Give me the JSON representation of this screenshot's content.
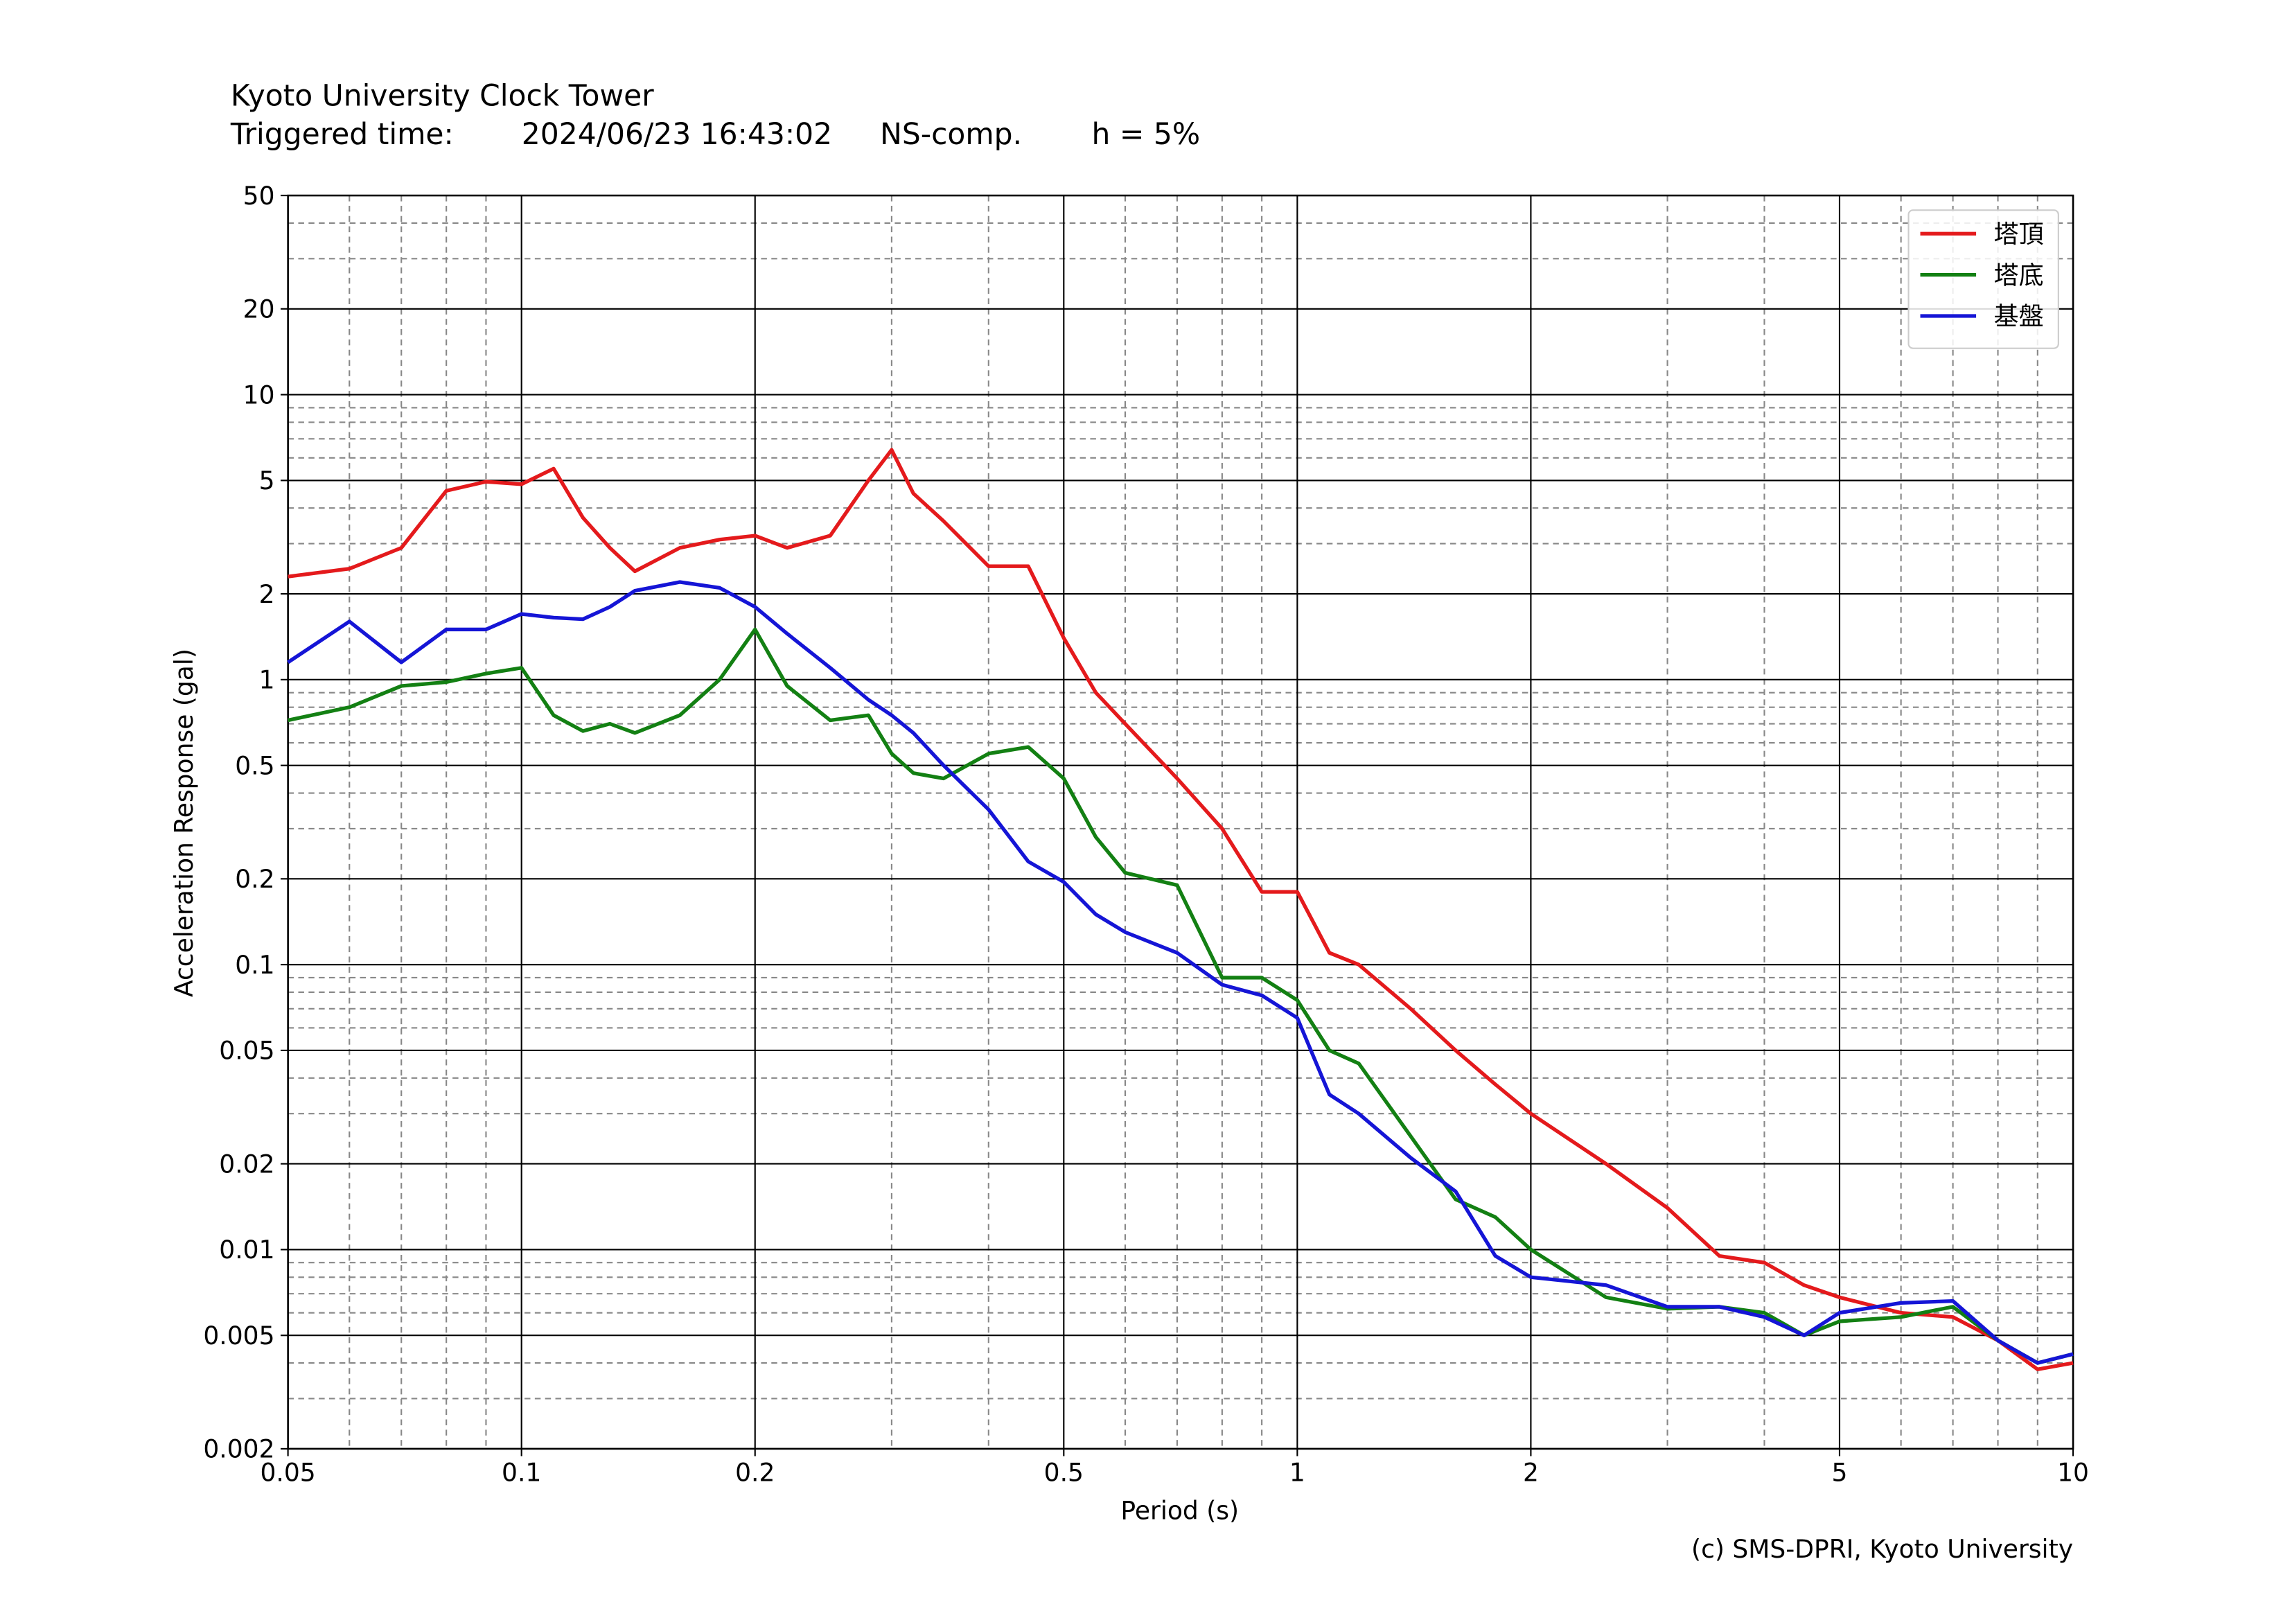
{
  "chart_data": {
    "type": "line",
    "title": "Kyoto University Clock Tower",
    "info": [
      "Triggered time:",
      "2024/06/23 16:43:02",
      "NS-comp.",
      "h = 5%"
    ],
    "xlabel": "Period (s)",
    "ylabel": "Acceleration Response (gal)",
    "credit": "(c) SMS-DPRI, Kyoto University",
    "xscale": "log",
    "yscale": "log",
    "grid": true,
    "legend": "upper right",
    "xlim": [
      0.05,
      10
    ],
    "ylim": [
      0.002,
      50
    ],
    "xticks": [
      0.05,
      0.1,
      0.2,
      0.5,
      1,
      2,
      5,
      10
    ],
    "xminorticks": [
      0.06,
      0.07,
      0.08,
      0.09,
      0.3,
      0.4,
      0.6,
      0.7,
      0.8,
      0.9,
      3,
      4,
      6,
      7,
      8,
      9
    ],
    "yticks": [
      0.002,
      0.005,
      0.01,
      0.02,
      0.05,
      0.1,
      0.2,
      0.5,
      1,
      2,
      5,
      10,
      20,
      50
    ],
    "yminorticks": [
      0.003,
      0.004,
      0.006,
      0.007,
      0.008,
      0.009,
      0.03,
      0.04,
      0.06,
      0.07,
      0.08,
      0.09,
      0.3,
      0.4,
      0.6,
      0.7,
      0.8,
      0.9,
      3,
      4,
      6,
      7,
      8,
      9,
      30,
      40
    ],
    "x": [
      0.05,
      0.06,
      0.07,
      0.08,
      0.09,
      0.1,
      0.11,
      0.12,
      0.13,
      0.14,
      0.16,
      0.18,
      0.2,
      0.22,
      0.25,
      0.28,
      0.3,
      0.32,
      0.35,
      0.4,
      0.45,
      0.5,
      0.55,
      0.6,
      0.7,
      0.8,
      0.9,
      1,
      1.1,
      1.2,
      1.4,
      1.6,
      1.8,
      2,
      2.5,
      3,
      3.5,
      4,
      4.5,
      5,
      6,
      7,
      8,
      9,
      10
    ],
    "series": [
      {
        "name": "塔頂",
        "color": "#e41a1c",
        "values": [
          2.3,
          2.45,
          2.9,
          4.6,
          4.95,
          4.85,
          5.5,
          3.7,
          2.9,
          2.4,
          2.9,
          3.1,
          3.2,
          2.9,
          3.2,
          5.0,
          6.4,
          4.5,
          3.6,
          2.5,
          2.5,
          1.4,
          0.9,
          0.7,
          0.45,
          0.3,
          0.18,
          0.18,
          0.11,
          0.1,
          0.07,
          0.05,
          0.038,
          0.03,
          0.02,
          0.014,
          0.0095,
          0.009,
          0.0075,
          0.0068,
          0.006,
          0.0058,
          0.0048,
          0.0038,
          0.004
        ]
      },
      {
        "name": "塔底",
        "color": "#138013",
        "values": [
          0.72,
          0.8,
          0.95,
          0.98,
          1.05,
          1.1,
          0.75,
          0.66,
          0.7,
          0.65,
          0.75,
          1.0,
          1.5,
          0.95,
          0.72,
          0.75,
          0.55,
          0.47,
          0.45,
          0.55,
          0.58,
          0.45,
          0.28,
          0.21,
          0.19,
          0.09,
          0.09,
          0.075,
          0.05,
          0.045,
          0.025,
          0.015,
          0.013,
          0.01,
          0.0068,
          0.0062,
          0.0063,
          0.006,
          0.005,
          0.0056,
          0.0058,
          0.0063,
          0.0048,
          0.004,
          0.0043
        ]
      },
      {
        "name": "基盤",
        "color": "#1515d6",
        "values": [
          1.15,
          1.6,
          1.15,
          1.5,
          1.5,
          1.7,
          1.65,
          1.63,
          1.8,
          2.05,
          2.2,
          2.1,
          1.8,
          1.45,
          1.1,
          0.85,
          0.75,
          0.65,
          0.5,
          0.35,
          0.23,
          0.195,
          0.15,
          0.13,
          0.11,
          0.085,
          0.078,
          0.065,
          0.035,
          0.03,
          0.021,
          0.016,
          0.0095,
          0.008,
          0.0075,
          0.0063,
          0.0063,
          0.0058,
          0.005,
          0.006,
          0.0065,
          0.0066,
          0.0048,
          0.004,
          0.0043
        ]
      }
    ]
  }
}
